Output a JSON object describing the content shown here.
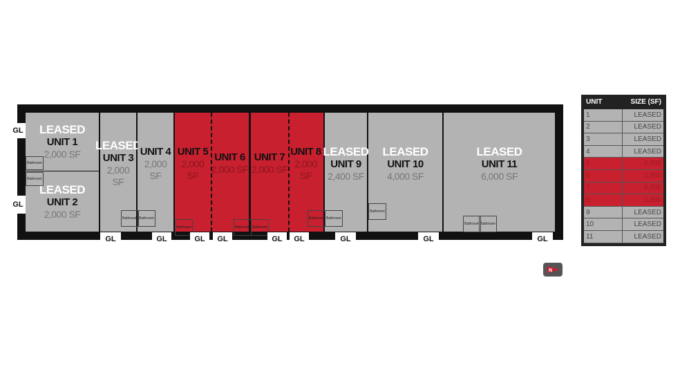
{
  "units": [
    {
      "id": "1",
      "leased": "LEASED",
      "name": "UNIT 1",
      "size": "2,000 SF",
      "available": false
    },
    {
      "id": "2",
      "leased": "LEASED",
      "name": "UNIT 2",
      "size": "2,000 SF",
      "available": false
    },
    {
      "id": "3",
      "leased": "LEASED",
      "name": "UNIT 3",
      "size": "2,000 SF",
      "available": false
    },
    {
      "id": "4",
      "leased": "",
      "name": "UNIT 4",
      "size": "2,000 SF",
      "available": false
    },
    {
      "id": "5",
      "leased": "",
      "name": "UNIT 5",
      "size": "2,000 SF",
      "available": true
    },
    {
      "id": "6",
      "leased": "",
      "name": "UNIT 6",
      "size": "2,000 SF",
      "available": true
    },
    {
      "id": "7",
      "leased": "",
      "name": "UNIT 7",
      "size": "2,000 SF",
      "available": true
    },
    {
      "id": "8",
      "leased": "",
      "name": "UNIT 8",
      "size": "2,000 SF",
      "available": true
    },
    {
      "id": "9",
      "leased": "LEASED",
      "name": "UNIT 9",
      "size": "2,400 SF",
      "available": false
    },
    {
      "id": "10",
      "leased": "LEASED",
      "name": "UNIT 10",
      "size": "4,000 SF",
      "available": false
    },
    {
      "id": "11",
      "leased": "LEASED",
      "name": "UNIT 11",
      "size": "6,000 SF",
      "available": false
    }
  ],
  "gl_label": "GL",
  "bathroom_label": "Bathroom",
  "table": {
    "headers": [
      "UNIT",
      "SIZE (SF)"
    ],
    "rows": [
      [
        "1",
        "LEASED"
      ],
      [
        "2",
        "LEASED"
      ],
      [
        "3",
        "LEASED"
      ],
      [
        "4",
        "LEASED"
      ],
      [
        "5",
        "2,000"
      ],
      [
        "6",
        "2,000"
      ],
      [
        "7",
        "2,000"
      ],
      [
        "8",
        "2,000"
      ],
      [
        "9",
        "LEASED"
      ],
      [
        "10",
        "LEASED"
      ],
      [
        "11",
        "LEASED"
      ]
    ]
  },
  "colors": {
    "available": "#c8202f",
    "leased": "#b3b3b3",
    "wall": "#111111"
  }
}
